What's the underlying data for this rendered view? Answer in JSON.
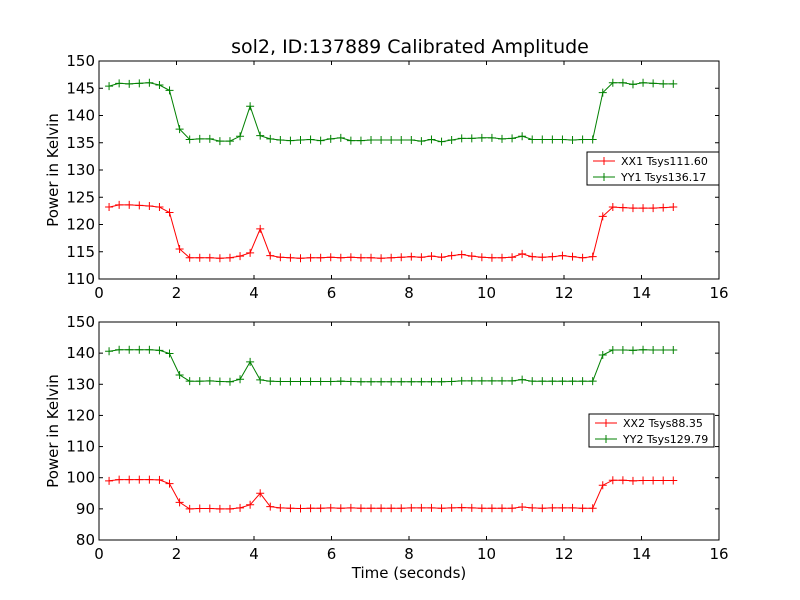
{
  "figure_title": "sol2, ID:137889 Calibrated Amplitude",
  "chart_data": [
    {
      "type": "line",
      "title": "sol2, ID:137889 Calibrated Amplitude",
      "xlabel": "",
      "ylabel": "Power in Kelvin",
      "xlim": [
        0,
        16
      ],
      "ylim": [
        110,
        150
      ],
      "x_ticks": [
        "0",
        "2",
        "4",
        "6",
        "8",
        "10",
        "12",
        "14",
        "16"
      ],
      "y_ticks": [
        "110",
        "115",
        "120",
        "125",
        "130",
        "135",
        "140",
        "145",
        "150"
      ],
      "grid": false,
      "legend_position": "right",
      "x": [
        0.26,
        0.52,
        0.78,
        1.04,
        1.3,
        1.56,
        1.82,
        2.08,
        2.34,
        2.6,
        2.86,
        3.12,
        3.38,
        3.64,
        3.9,
        4.16,
        4.42,
        4.68,
        4.94,
        5.2,
        5.46,
        5.72,
        5.98,
        6.24,
        6.5,
        6.76,
        7.02,
        7.28,
        7.54,
        7.8,
        8.06,
        8.32,
        8.58,
        8.84,
        9.1,
        9.36,
        9.62,
        9.88,
        10.14,
        10.4,
        10.66,
        10.92,
        11.18,
        11.44,
        11.7,
        11.96,
        12.22,
        12.48,
        12.74,
        13.0,
        13.26,
        13.52,
        13.78,
        14.04,
        14.3,
        14.56,
        14.82
      ],
      "series": [
        {
          "name": "XX1 Tsys111.60",
          "color": "#ff0000",
          "values": [
            123.2,
            123.6,
            123.6,
            123.5,
            123.4,
            123.2,
            122.2,
            115.5,
            113.9,
            113.9,
            113.9,
            113.8,
            113.9,
            114.2,
            114.8,
            119.2,
            114.3,
            114.0,
            113.9,
            113.8,
            113.9,
            113.9,
            114.0,
            113.9,
            114.0,
            113.9,
            113.9,
            113.8,
            113.9,
            114.0,
            114.1,
            114.0,
            114.2,
            114.0,
            114.3,
            114.5,
            114.2,
            114.0,
            113.9,
            113.9,
            114.0,
            114.6,
            114.1,
            114.0,
            114.1,
            114.3,
            114.1,
            113.9,
            114.1,
            121.5,
            123.2,
            123.1,
            123.0,
            123.0,
            123.0,
            123.1,
            123.2
          ]
        },
        {
          "name": "YY1 Tsys136.17",
          "color": "#008000",
          "values": [
            145.4,
            145.9,
            145.8,
            145.9,
            146.0,
            145.6,
            144.6,
            137.5,
            135.6,
            135.7,
            135.7,
            135.3,
            135.3,
            136.2,
            141.7,
            136.3,
            135.7,
            135.5,
            135.4,
            135.5,
            135.6,
            135.4,
            135.7,
            135.9,
            135.4,
            135.4,
            135.5,
            135.5,
            135.5,
            135.5,
            135.5,
            135.3,
            135.6,
            135.2,
            135.5,
            135.8,
            135.8,
            135.9,
            135.9,
            135.7,
            135.8,
            136.2,
            135.6,
            135.6,
            135.6,
            135.6,
            135.5,
            135.6,
            135.6,
            144.2,
            146.0,
            146.0,
            145.7,
            146.0,
            145.9,
            145.8,
            145.8
          ]
        }
      ]
    },
    {
      "type": "line",
      "title": "",
      "xlabel": "Time (seconds)",
      "ylabel": "Power in Kelvin",
      "xlim": [
        0,
        16
      ],
      "ylim": [
        80,
        150
      ],
      "x_ticks": [
        "0",
        "2",
        "4",
        "6",
        "8",
        "10",
        "12",
        "14",
        "16"
      ],
      "y_ticks": [
        "80",
        "90",
        "100",
        "110",
        "120",
        "130",
        "140",
        "150"
      ],
      "grid": false,
      "legend_position": "right",
      "x": [
        0.26,
        0.52,
        0.78,
        1.04,
        1.3,
        1.56,
        1.82,
        2.08,
        2.34,
        2.6,
        2.86,
        3.12,
        3.38,
        3.64,
        3.9,
        4.16,
        4.42,
        4.68,
        4.94,
        5.2,
        5.46,
        5.72,
        5.98,
        6.24,
        6.5,
        6.76,
        7.02,
        7.28,
        7.54,
        7.8,
        8.06,
        8.32,
        8.58,
        8.84,
        9.1,
        9.36,
        9.62,
        9.88,
        10.14,
        10.4,
        10.66,
        10.92,
        11.18,
        11.44,
        11.7,
        11.96,
        12.22,
        12.48,
        12.74,
        13.0,
        13.26,
        13.52,
        13.78,
        14.04,
        14.3,
        14.56,
        14.82
      ],
      "series": [
        {
          "name": "XX2 Tsys88.35",
          "color": "#ff0000",
          "values": [
            99.0,
            99.4,
            99.4,
            99.4,
            99.4,
            99.3,
            98.1,
            92.1,
            90.0,
            90.1,
            90.1,
            90.0,
            90.0,
            90.3,
            91.3,
            95.0,
            90.7,
            90.3,
            90.2,
            90.1,
            90.2,
            90.2,
            90.3,
            90.2,
            90.3,
            90.2,
            90.2,
            90.2,
            90.2,
            90.2,
            90.3,
            90.3,
            90.3,
            90.2,
            90.3,
            90.4,
            90.3,
            90.2,
            90.2,
            90.2,
            90.2,
            90.6,
            90.3,
            90.2,
            90.3,
            90.3,
            90.3,
            90.2,
            90.2,
            97.6,
            99.2,
            99.2,
            99.0,
            99.1,
            99.1,
            99.1,
            99.1
          ]
        },
        {
          "name": "YY2 Tsys129.79",
          "color": "#008000",
          "values": [
            140.6,
            141.1,
            141.1,
            141.1,
            141.1,
            140.9,
            139.9,
            133.0,
            131.0,
            131.0,
            131.1,
            130.9,
            130.8,
            131.6,
            137.2,
            131.4,
            131.0,
            130.9,
            130.9,
            130.9,
            130.9,
            130.9,
            130.9,
            131.0,
            130.9,
            130.8,
            130.8,
            130.8,
            130.8,
            130.8,
            130.8,
            130.8,
            130.8,
            130.8,
            130.9,
            131.1,
            131.1,
            131.1,
            131.1,
            131.1,
            131.1,
            131.5,
            131.0,
            131.0,
            131.0,
            131.0,
            131.0,
            131.0,
            131.0,
            139.4,
            141.0,
            141.0,
            140.9,
            141.1,
            141.0,
            141.0,
            141.0
          ]
        }
      ]
    }
  ]
}
